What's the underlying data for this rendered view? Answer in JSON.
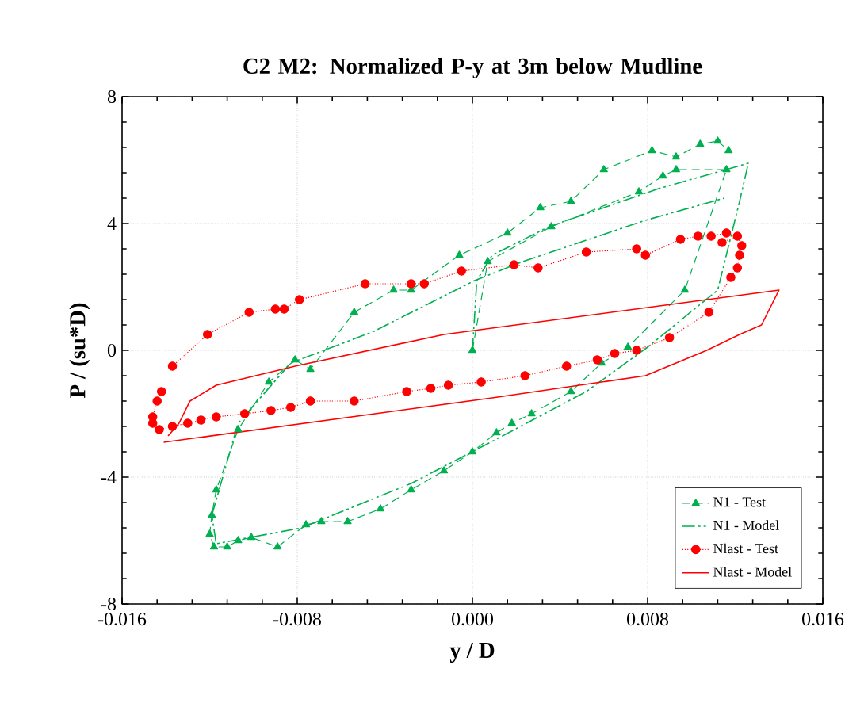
{
  "chart_data": {
    "type": "line",
    "title": "C2 M2: Normalized P-y at 3m below Mudline",
    "xlabel": "y / D",
    "ylabel": "P / (su*D)",
    "xlim": [
      -0.016,
      0.016
    ],
    "ylim": [
      -8,
      8
    ],
    "xticks": [
      {
        "value": -0.016,
        "label": "-0.016"
      },
      {
        "value": -0.008,
        "label": "-0.008"
      },
      {
        "value": 0,
        "label": "0.000"
      },
      {
        "value": 0.008,
        "label": "0.008"
      },
      {
        "value": 0.016,
        "label": "0.016"
      }
    ],
    "yticks": [
      -8,
      -4,
      0,
      4,
      8
    ],
    "grid": true,
    "legend": "bottom right",
    "series": [
      {
        "name": "N1 - Test",
        "color": "#00b050",
        "line_style": "dashed",
        "marker": "triangle",
        "x": [
          0,
          0.0007,
          0.0036,
          0.0076,
          0.0087,
          0.0093,
          0.0116,
          0.0097,
          0.0071,
          0.0059,
          0.0045,
          0.0027,
          0.0018,
          0.0011,
          0,
          -0.0013,
          -0.0028,
          -0.0042,
          -0.0057,
          -0.0069,
          -0.0076,
          -0.0089,
          -0.0101,
          -0.0107,
          -0.0112,
          -0.0118,
          -0.012,
          -0.0119,
          -0.0117,
          -0.0107,
          -0.0093,
          -0.0081,
          -0.0074,
          -0.0054,
          -0.0036,
          -0.0028,
          -0.0006,
          0.0016,
          0.0031,
          0.0045,
          0.006,
          0.0082,
          0.0093,
          0.0104,
          0.0112,
          0.0117
        ],
        "values": [
          0,
          2.8,
          3.9,
          5.0,
          5.5,
          5.7,
          5.7,
          1.9,
          0.1,
          -0.4,
          -1.3,
          -2.0,
          -2.3,
          -2.6,
          -3.2,
          -3.8,
          -4.4,
          -5.0,
          -5.4,
          -5.4,
          -5.5,
          -6.2,
          -5.9,
          -6.0,
          -6.2,
          -6.2,
          -5.8,
          -5.2,
          -4.4,
          -2.5,
          -1.0,
          -0.3,
          -0.6,
          1.2,
          1.9,
          1.9,
          3.0,
          3.7,
          4.5,
          4.7,
          5.7,
          6.3,
          6.1,
          6.5,
          6.6,
          6.3
        ]
      },
      {
        "name": "N1 - Model",
        "color": "#00b050",
        "line_style": "dashdot",
        "marker": "none",
        "x": [
          0,
          0.0002,
          0.0009,
          0.0035,
          0.0085,
          0.0126,
          0.0122,
          0.0112,
          0.008,
          0.0052,
          0.0011,
          -0.0028,
          -0.0078,
          -0.0117,
          -0.0119,
          -0.0107,
          -0.0083,
          -0.0045,
          0.0001,
          0.0023,
          0.0079,
          0.0115
        ],
        "values": [
          0,
          2.2,
          3.0,
          3.9,
          5.1,
          5.9,
          4.7,
          1.9,
          0.1,
          -1.3,
          -2.8,
          -4.2,
          -5.6,
          -6.1,
          -5.2,
          -2.3,
          -0.4,
          0.6,
          2.2,
          2.8,
          4.1,
          4.8
        ]
      },
      {
        "name": "Nlast - Test",
        "color": "#ff0000",
        "line_style": "dotted",
        "marker": "circle",
        "x": [
          -0.0137,
          -0.0121,
          -0.0102,
          -0.009,
          -0.0086,
          -0.0079,
          -0.0049,
          -0.0028,
          -0.0022,
          -0.0005,
          0.0019,
          0.003,
          0.0052,
          0.0075,
          0.0079,
          0.0095,
          0.0103,
          0.0109,
          0.0116,
          0.0114,
          0.0121,
          0.0123,
          0.0122,
          0.0121,
          0.0118,
          0.0108,
          0.009,
          0.0075,
          0.0065,
          0.0057,
          0.0043,
          0.0024,
          0.0004,
          -0.0011,
          -0.0019,
          -0.003,
          -0.0054,
          -0.0074,
          -0.0083,
          -0.0092,
          -0.0104,
          -0.0117,
          -0.0124,
          -0.013,
          -0.0137,
          -0.0143,
          -0.0146,
          -0.0146,
          -0.0144,
          -0.0142
        ],
        "values": [
          -0.5,
          0.5,
          1.2,
          1.3,
          1.3,
          1.6,
          2.1,
          2.1,
          2.1,
          2.5,
          2.7,
          2.6,
          3.1,
          3.2,
          3.0,
          3.5,
          3.6,
          3.6,
          3.7,
          3.4,
          3.6,
          3.3,
          3.0,
          2.6,
          2.3,
          1.2,
          0.4,
          0.0,
          -0.1,
          -0.3,
          -0.5,
          -0.8,
          -1.0,
          -1.1,
          -1.2,
          -1.3,
          -1.6,
          -1.6,
          -1.8,
          -1.9,
          -2.0,
          -2.1,
          -2.2,
          -2.3,
          -2.4,
          -2.5,
          -2.3,
          -2.1,
          -1.6,
          -1.3
        ]
      },
      {
        "name": "Nlast - Model",
        "color": "#ff0000",
        "line_style": "solid",
        "marker": "none",
        "x": [
          -0.0141,
          0.0009,
          0.0079,
          0.0107,
          0.0122,
          0.0132,
          0.014,
          -0.0013,
          -0.0081,
          -0.0117,
          -0.0129,
          -0.0134,
          -0.0139
        ],
        "values": [
          -2.9,
          -1.5,
          -0.8,
          0.0,
          0.5,
          0.8,
          1.9,
          0.5,
          -0.5,
          -1.1,
          -1.6,
          -2.3,
          -2.7
        ]
      }
    ]
  }
}
